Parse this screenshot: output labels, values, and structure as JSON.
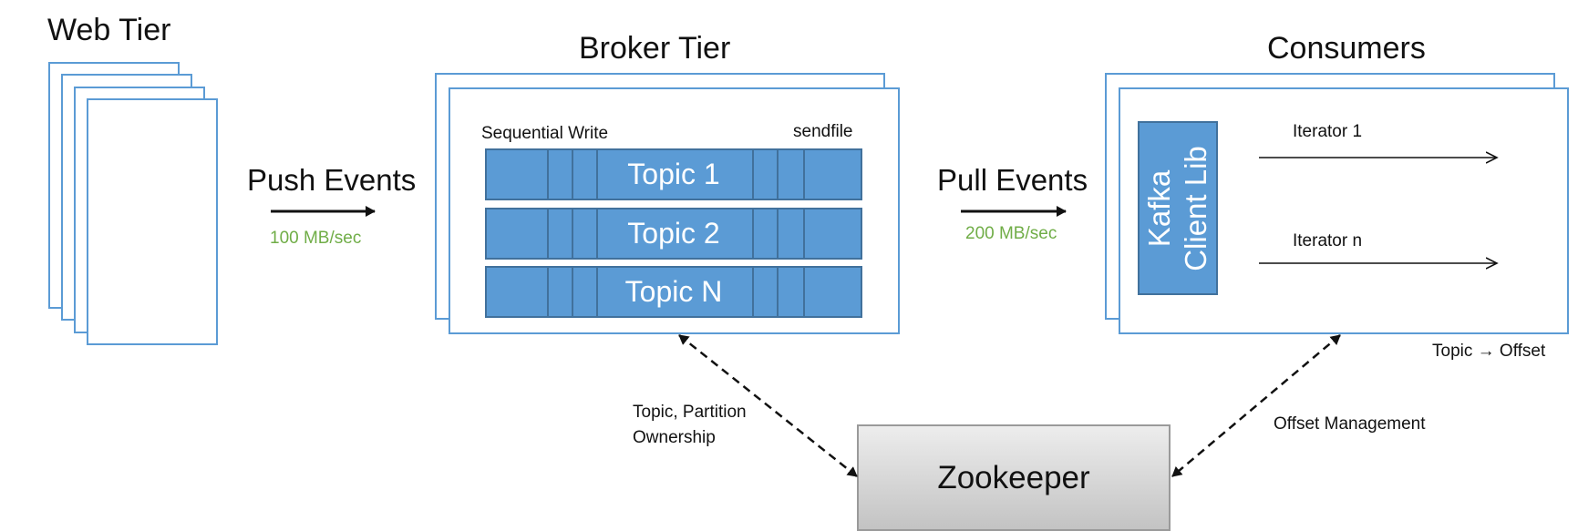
{
  "web_tier": {
    "title": "Web Tier"
  },
  "push": {
    "label": "Push Events",
    "rate": "100 MB/sec"
  },
  "broker": {
    "title": "Broker Tier",
    "sequential_write": "Sequential Write",
    "sendfile": "sendfile",
    "topics": [
      "Topic 1",
      "Topic 2",
      "Topic N"
    ]
  },
  "pull": {
    "label": "Pull Events",
    "rate": "200 MB/sec"
  },
  "consumers": {
    "title": "Consumers",
    "client_lib_line1": "Kafka",
    "client_lib_line2": "Client Lib",
    "iterators": [
      "Iterator 1",
      "Iterator n"
    ],
    "topic_offset": "Topic → Offset"
  },
  "zookeeper": {
    "label": "Zookeeper",
    "ownership_line1": "Topic, Partition",
    "ownership_line2": "Ownership",
    "offset_management": "Offset Management"
  },
  "colors": {
    "frame": "#5b9bd5",
    "topic_fill": "#5b9bd5",
    "topic_border": "#41719c",
    "rate": "#70ad47"
  }
}
